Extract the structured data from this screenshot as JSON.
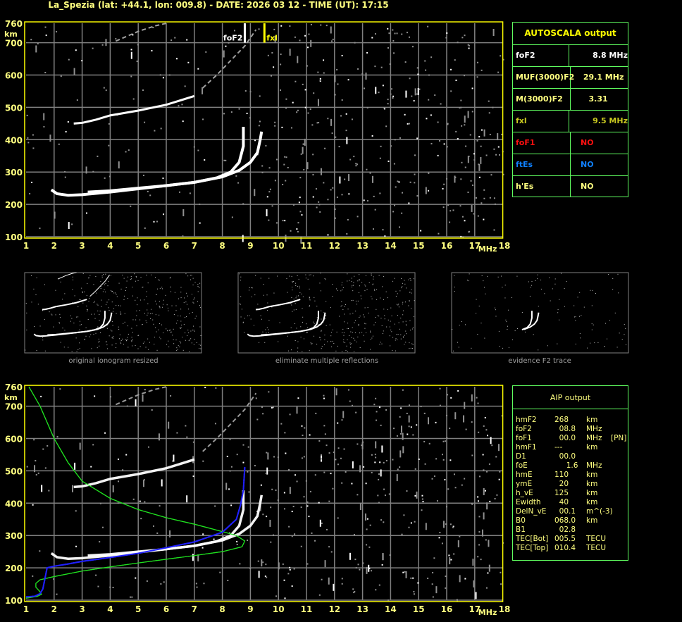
{
  "header": {
    "title": "La_Spezia (lat: +44.1, lon: 009.8) - DATE: 2026 03 12 - TIME (UT): 17:15"
  },
  "autoscala": {
    "title": "AUTOSCALA output",
    "rows": [
      {
        "label": "foF2",
        "value": "     8.8 MHz",
        "color": "#ffffff"
      },
      {
        "label": "MUF(3000)F2",
        "value": " 29.1 MHz",
        "color": "#ffff80"
      },
      {
        "label": "M(3000)F2",
        "value": "   3.31",
        "color": "#ffff80"
      },
      {
        "label": "fxl",
        "value": "     9.5 MHz",
        "color": "#c8c820"
      },
      {
        "label": "foF1",
        "value": "NO",
        "color": "#ff1010"
      },
      {
        "label": "ftEs",
        "value": "NO",
        "color": "#1080ff"
      },
      {
        "label": "h'Es",
        "value": "NO",
        "color": "#ffff80"
      }
    ]
  },
  "aip": {
    "title": "AIP output",
    "rows": [
      [
        "hmF2",
        "268",
        "km",
        ""
      ],
      [
        "foF2",
        "  08.8",
        "MHz",
        ""
      ],
      [
        "foF1",
        "  00.0",
        "MHz",
        "[PN]"
      ],
      [
        "hmF1",
        "---",
        "km",
        ""
      ],
      [
        "D1",
        "  00.0",
        "",
        ""
      ],
      [
        "foE",
        "     1.6",
        "MHz",
        ""
      ],
      [
        "hmE",
        "110",
        "km",
        ""
      ],
      [
        "ymE",
        "  20",
        "km",
        ""
      ],
      [
        "h_vE",
        "125",
        "km",
        ""
      ],
      [
        "Ewidth",
        "  40",
        "km",
        ""
      ],
      [
        "DelN_vE",
        "  00.1",
        "m^(-3)",
        ""
      ],
      [
        "B0",
        "068.0",
        "km",
        ""
      ],
      [
        "B1",
        "  02.8",
        "",
        ""
      ],
      [
        "TEC[Bot]",
        "005.5",
        "TECU",
        ""
      ],
      [
        "TEC[Top]",
        "010.4",
        "TECU",
        ""
      ]
    ]
  },
  "thumbnails": {
    "captions": [
      "original ionogram resized",
      "eliminate multiple reflections",
      "evidence F2 trace"
    ]
  },
  "markers": {
    "foF2_label": "foF2",
    "fxl_label": "fxl",
    "foF2": 8.8,
    "fxl": 9.5
  },
  "chart_data": [
    {
      "type": "scatter",
      "title": "",
      "xlabel": "MHz",
      "ylabel": "km",
      "xlim": [
        1,
        18
      ],
      "ylim": [
        100,
        760
      ],
      "xticks": [
        "1",
        "2",
        "3",
        "4",
        "5",
        "6",
        "7",
        "8",
        "9",
        "10",
        "11",
        "12",
        "13",
        "14",
        "15",
        "16",
        "17",
        "18"
      ],
      "yticks": [
        "100",
        "200",
        "300",
        "400",
        "500",
        "600",
        "700",
        "760"
      ],
      "grid": true,
      "series": [
        {
          "trace": "ordinary",
          "color": "#ffffff",
          "points": [
            [
              1.9,
              245
            ],
            [
              2.1,
              233
            ],
            [
              2.5,
              228
            ],
            [
              3,
              230
            ],
            [
              4,
              238
            ],
            [
              5,
              248
            ],
            [
              6,
              258
            ],
            [
              7,
              268
            ],
            [
              7.8,
              282
            ],
            [
              8.3,
              300
            ],
            [
              8.6,
              330
            ],
            [
              8.75,
              380
            ],
            [
              8.75,
              440
            ]
          ]
        },
        {
          "trace": "extraordinary",
          "color": "#ffffff",
          "points": [
            [
              3.2,
              238
            ],
            [
              4,
              242
            ],
            [
              5,
              250
            ],
            [
              6,
              258
            ],
            [
              7,
              268
            ],
            [
              8,
              285
            ],
            [
              8.6,
              305
            ],
            [
              9,
              330
            ],
            [
              9.25,
              360
            ],
            [
              9.35,
              400
            ],
            [
              9.4,
              425
            ]
          ]
        },
        {
          "trace": "multiple",
          "color": "#ffffff",
          "points": [
            [
              2.7,
              450
            ],
            [
              3,
              452
            ],
            [
              3.5,
              462
            ],
            [
              4,
              475
            ],
            [
              5,
              490
            ],
            [
              6,
              508
            ],
            [
              7,
              535
            ]
          ]
        },
        {
          "trace": "multiple-faint",
          "color": "#a0a0a0",
          "points": [
            [
              7.3,
              560
            ],
            [
              7.8,
              600
            ],
            [
              8.3,
              645
            ],
            [
              8.8,
              690
            ],
            [
              9.2,
              740
            ]
          ]
        },
        {
          "trace": "upper-faint",
          "color": "#a0a0a0",
          "points": [
            [
              4.2,
              705
            ],
            [
              5,
              735
            ],
            [
              5.6,
              752
            ],
            [
              6,
              760
            ]
          ]
        }
      ]
    },
    {
      "type": "line",
      "title": "",
      "xlabel": "MHz",
      "ylabel": "km",
      "xlim": [
        1,
        18
      ],
      "ylim": [
        100,
        760
      ],
      "xticks": [
        "1",
        "2",
        "3",
        "4",
        "5",
        "6",
        "7",
        "8",
        "9",
        "10",
        "11",
        "12",
        "13",
        "14",
        "15",
        "16",
        "17",
        "18"
      ],
      "yticks": [
        "100",
        "200",
        "300",
        "400",
        "500",
        "600",
        "700",
        "760"
      ],
      "grid": true,
      "series": [
        {
          "trace": "profile",
          "color": "#20e020",
          "points": [
            [
              1.1,
              760
            ],
            [
              1.5,
              700
            ],
            [
              2,
              600
            ],
            [
              2.5,
              525
            ],
            [
              3,
              468
            ],
            [
              4,
              415
            ],
            [
              5,
              380
            ],
            [
              6,
              355
            ],
            [
              7,
              335
            ],
            [
              8,
              312
            ],
            [
              8.5,
              300
            ],
            [
              8.8,
              283
            ],
            [
              8.7,
              265
            ],
            [
              8,
              250
            ],
            [
              7,
              238
            ],
            [
              5,
              215
            ],
            [
              4,
              203
            ],
            [
              3,
              190
            ],
            [
              2,
              173
            ],
            [
              1.5,
              163
            ],
            [
              1.35,
              152
            ],
            [
              1.35,
              140
            ],
            [
              1.5,
              126
            ],
            [
              1.55,
              118
            ],
            [
              1.4,
              112
            ],
            [
              1.0,
              106
            ]
          ]
        },
        {
          "trace": "fitted",
          "color": "#2020ff",
          "points": [
            [
              1.0,
              110
            ],
            [
              1.3,
              112
            ],
            [
              1.5,
              120
            ],
            [
              1.6,
              135
            ],
            [
              1.75,
              200
            ],
            [
              2,
              205
            ],
            [
              2.5,
              212
            ],
            [
              3,
              220
            ],
            [
              4,
              232
            ],
            [
              5,
              245
            ],
            [
              6,
              262
            ],
            [
              7,
              280
            ],
            [
              8,
              310
            ],
            [
              8.5,
              350
            ],
            [
              8.65,
              395
            ],
            [
              8.75,
              440
            ],
            [
              8.8,
              512
            ]
          ]
        }
      ]
    }
  ],
  "colors": {
    "axis": "#ffff00",
    "grid": "#808080",
    "label": "#ffff80",
    "panel_border": "#60ff60"
  }
}
